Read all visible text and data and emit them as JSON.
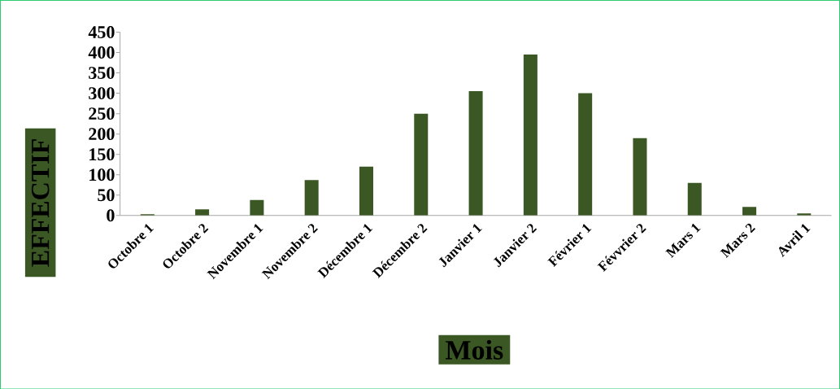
{
  "chart_data": {
    "type": "bar",
    "xlabel": "Mois",
    "ylabel": "EFFECTIF",
    "categories": [
      "Octobre 1",
      "Octobre 2",
      "Novembre 1",
      "Novembre 2",
      "Décembre 1",
      "Décembre 2",
      "Janvier 1",
      "Janvier 2",
      "Février 1",
      "Févvrier 2",
      "Mars 1",
      "Mars 2",
      "Avril 1"
    ],
    "values": [
      3,
      15,
      38,
      87,
      120,
      250,
      305,
      395,
      300,
      190,
      80,
      21,
      5
    ],
    "color": "#3b5723",
    "ylim": [
      0,
      450
    ],
    "yticks": [
      0,
      50,
      100,
      150,
      200,
      250,
      300,
      350,
      400,
      450
    ],
    "grid": false
  }
}
